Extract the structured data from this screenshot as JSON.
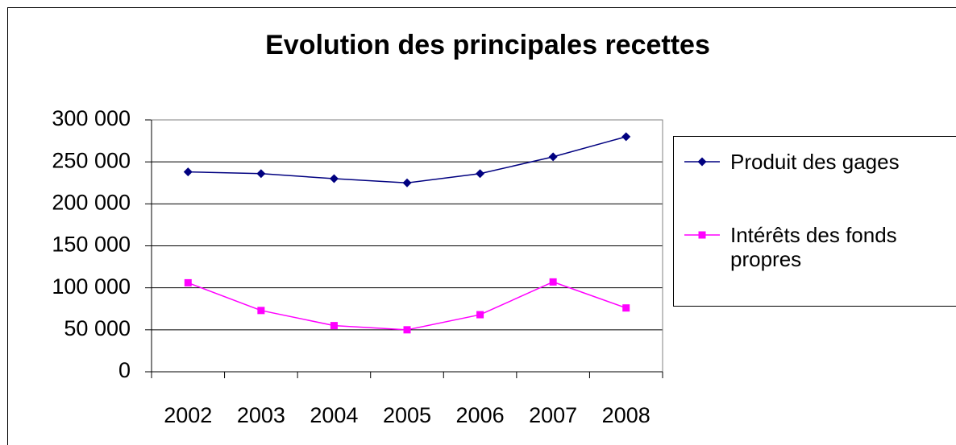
{
  "chart_data": {
    "type": "line",
    "title": "Evolution des principales recettes",
    "categories": [
      "2002",
      "2003",
      "2004",
      "2005",
      "2006",
      "2007",
      "2008"
    ],
    "series": [
      {
        "name": "Produit des gages",
        "color": "#000080",
        "marker": "diamond",
        "values": [
          238000,
          236000,
          230000,
          225000,
          236000,
          256000,
          280000
        ]
      },
      {
        "name": "Intérêts des fonds propres",
        "color": "#ff00ff",
        "marker": "square",
        "values": [
          106000,
          73000,
          55000,
          50000,
          68000,
          107000,
          76000
        ]
      }
    ],
    "ylim": [
      0,
      300000
    ],
    "yticks": [
      0,
      {
        "value": 50000,
        "label": "50 000"
      },
      {
        "value": 100000,
        "label": "100 000"
      },
      {
        "value": 150000,
        "label": "150 000"
      },
      {
        "value": 200000,
        "label": "200 000"
      },
      {
        "value": 250000,
        "label": "250 000"
      },
      {
        "value": 300000,
        "label": "300 000"
      }
    ],
    "grid": true,
    "legend": "right"
  }
}
